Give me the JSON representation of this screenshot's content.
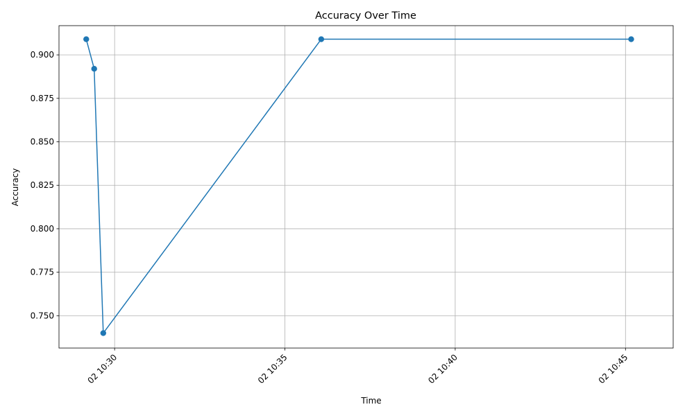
{
  "chart_data": {
    "type": "line",
    "title": "Accuracy Over Time",
    "xlabel": "Time",
    "ylabel": "Accuracy",
    "grid": true,
    "x_axis_type": "time",
    "xlim": [
      "02 10:28:22",
      "02 10:46:24"
    ],
    "ylim": [
      0.7314,
      0.9168
    ],
    "x_ticks": [
      {
        "value": "02 10:30:00",
        "label": "02 10:30"
      },
      {
        "value": "02 10:35:00",
        "label": "02 10:35"
      },
      {
        "value": "02 10:40:00",
        "label": "02 10:40"
      },
      {
        "value": "02 10:45:00",
        "label": "02 10:45"
      }
    ],
    "y_ticks": [
      0.75,
      0.775,
      0.8,
      0.825,
      0.85,
      0.875,
      0.9
    ],
    "series": [
      {
        "color": "#1f77b4",
        "marker": "circle",
        "points": [
          {
            "x": "02 10:29:10",
            "y": 0.909
          },
          {
            "x": "02 10:29:24",
            "y": 0.892
          },
          {
            "x": "02 10:29:40",
            "y": 0.74
          },
          {
            "x": "02 10:36:04",
            "y": 0.909
          },
          {
            "x": "02 10:45:10",
            "y": 0.909
          }
        ]
      }
    ]
  }
}
